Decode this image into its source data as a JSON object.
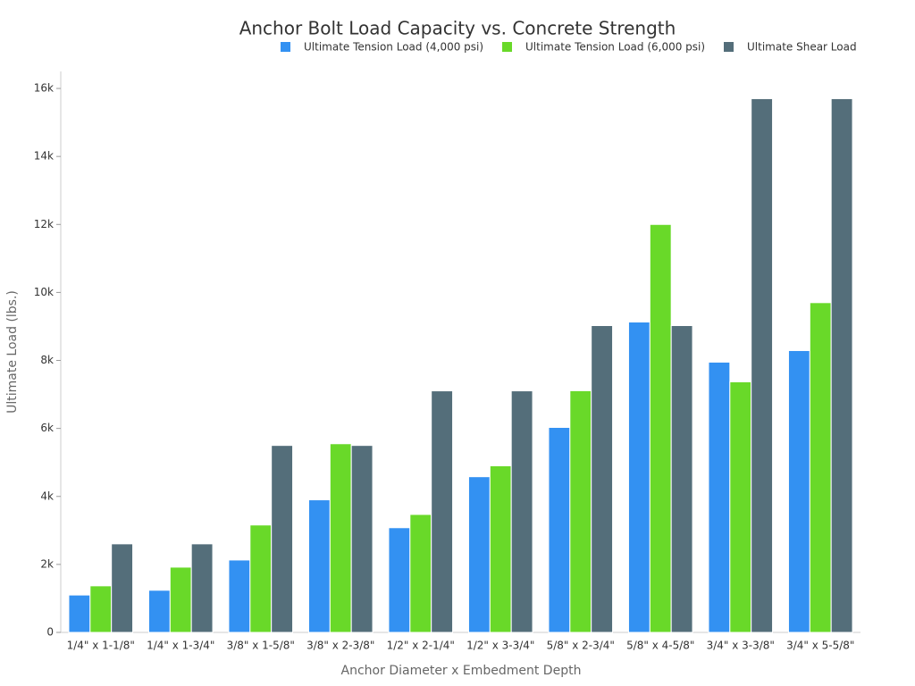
{
  "chart_data": {
    "type": "bar",
    "title": "Anchor Bolt Load Capacity vs. Concrete Strength",
    "x_label": "Anchor Diameter x Embedment Depth",
    "y_label": "Ultimate Load (lbs.)",
    "categories": [
      "1/4\" x 1-1/8\"",
      "1/4\" x 1-3/4\"",
      "3/8\" x 1-5/8\"",
      "3/8\" x 2-3/8\"",
      "1/2\" x 2-1/4\"",
      "1/2\" x 3-3/4\"",
      "5/8\" x 2-3/4\"",
      "5/8\" x 4-5/8\"",
      "3/4\" x 3-3/8\"",
      "3/4\" x 5-5/8\""
    ],
    "series": [
      {
        "name": "Ultimate Tension Load (4,000 psi)",
        "color": "#3391f2",
        "values": [
          1100,
          1240,
          2130,
          3900,
          3080,
          4580,
          6030,
          9130,
          7950,
          8290
        ]
      },
      {
        "name": "Ultimate Tension Load (6,000 psi)",
        "color": "#69d929",
        "values": [
          1370,
          1920,
          3160,
          5550,
          3470,
          4900,
          7110,
          12000,
          7370,
          9700
        ]
      },
      {
        "name": "Ultimate Shear Load",
        "color": "#546e7a",
        "values": [
          2605,
          2605,
          5500,
          5500,
          7105,
          7105,
          9025,
          9025,
          15700,
          15700
        ]
      }
    ],
    "ylim": [
      0,
      16500
    ],
    "yticks": [
      0,
      {
        "value": 2000,
        "label": "2k"
      },
      {
        "value": 4000,
        "label": "4k"
      },
      {
        "value": 6000,
        "label": "6k"
      },
      {
        "value": 8000,
        "label": "8k"
      },
      {
        "value": 10000,
        "label": "10k"
      },
      {
        "value": 12000,
        "label": "12k"
      },
      {
        "value": 14000,
        "label": "14k"
      },
      {
        "value": 16000,
        "label": "16k"
      }
    ],
    "legend": "top-right"
  }
}
